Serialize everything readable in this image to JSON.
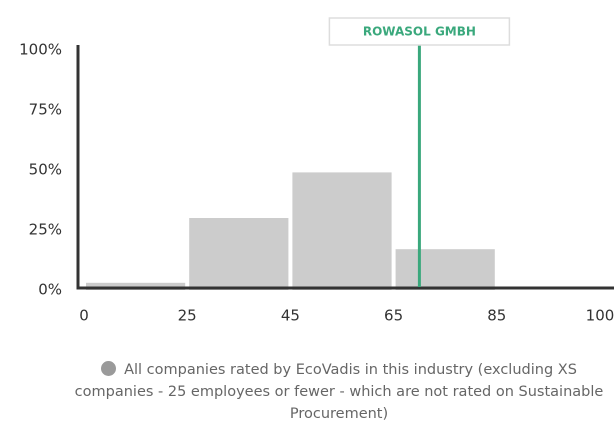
{
  "chart_data": {
    "type": "histogram",
    "bins": [
      0,
      25,
      45,
      65,
      85,
      100
    ],
    "values": [
      3,
      30,
      49,
      17,
      0
    ],
    "color": "#cccccc",
    "ylim": [
      0,
      100
    ],
    "yticks": [
      {
        "value": 0,
        "label": "0%"
      },
      {
        "value": 25,
        "label": "25%"
      },
      {
        "value": 50,
        "label": "50%"
      },
      {
        "value": 75,
        "label": "75%"
      },
      {
        "value": 100,
        "label": "100%"
      }
    ],
    "xticks": [
      0,
      25,
      45,
      65,
      85,
      100
    ],
    "marker": {
      "label": "ROWASOL GMBH",
      "value": 70,
      "color": "#3aa87c"
    },
    "legend": "All companies rated by EcoVadis in this industry (excluding XS companies - 25 employees or fewer - which are not rated on Sustainable Procurement)"
  }
}
